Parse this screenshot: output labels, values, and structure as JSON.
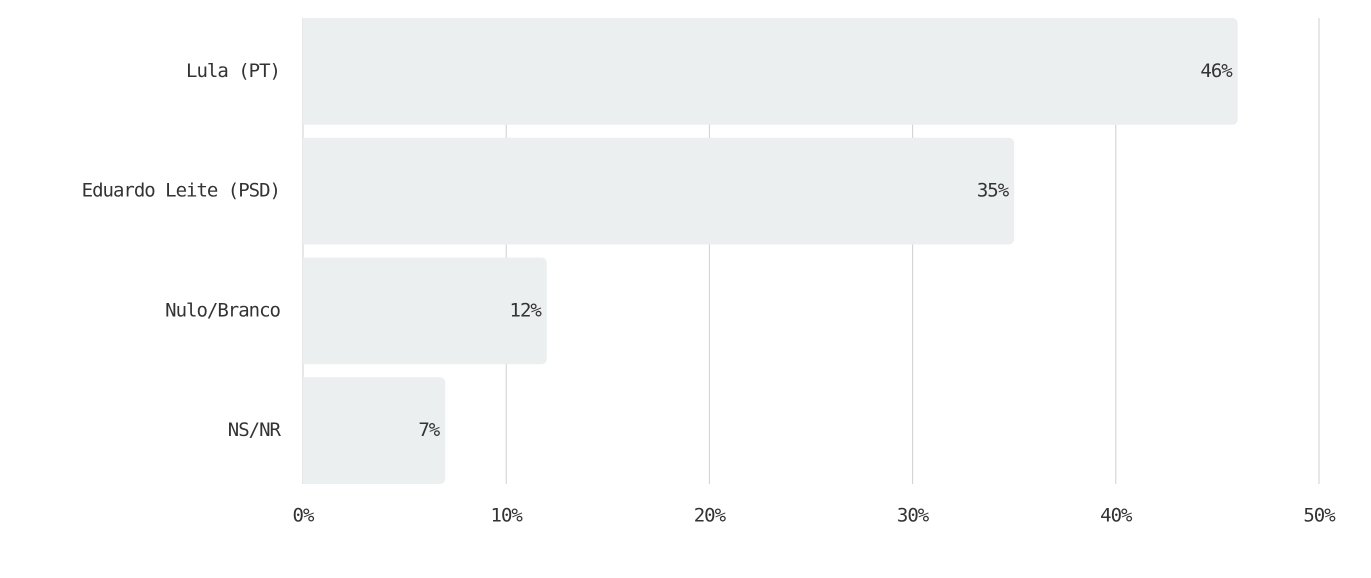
{
  "chart_data": {
    "type": "bar",
    "orientation": "horizontal",
    "categories": [
      "Lula (PT)",
      "Eduardo Leite (PSD)",
      "Nulo/Branco",
      "NS/NR"
    ],
    "values": [
      46,
      35,
      12,
      7
    ],
    "value_labels": [
      "46%",
      "35%",
      "12%",
      "7%"
    ],
    "color": "#eceff0",
    "xlim": [
      0,
      50
    ],
    "xticks": [
      {
        "value": 0,
        "label": "0%"
      },
      {
        "value": 10,
        "label": "10%"
      },
      {
        "value": 20,
        "label": "20%"
      },
      {
        "value": 30,
        "label": "30%"
      },
      {
        "value": 40,
        "label": "40%"
      },
      {
        "value": 50,
        "label": "50%"
      }
    ],
    "grid": true
  }
}
